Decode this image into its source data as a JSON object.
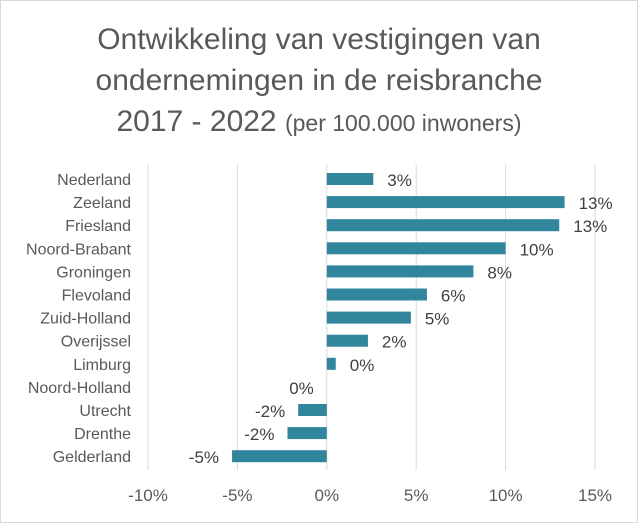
{
  "chart_data": {
    "type": "bar",
    "orientation": "horizontal",
    "title_line1": "Ontwikkeling van vestigingen van",
    "title_line2": "ondernemingen in de reisbranche",
    "title_line3_main": "2017 - 2022",
    "title_line3_sub": "(per 100.000 inwoners)",
    "categories": [
      "Nederland",
      "Zeeland",
      "Friesland",
      "Noord-Brabant",
      "Groningen",
      "Flevoland",
      "Zuid-Holland",
      "Overijssel",
      "Limburg",
      "Noord-Holland",
      "Utrecht",
      "Drenthe",
      "Gelderland"
    ],
    "values": [
      2.6,
      13.3,
      13.0,
      10.0,
      8.2,
      5.6,
      4.7,
      2.3,
      0.5,
      0.0,
      -1.6,
      -2.2,
      -5.3
    ],
    "data_labels": [
      "3%",
      "13%",
      "13%",
      "10%",
      "8%",
      "6%",
      "5%",
      "2%",
      "0%",
      "0%",
      "-2%",
      "-2%",
      "-5%"
    ],
    "xlim": [
      -10,
      15
    ],
    "xticks": [
      -10,
      -5,
      0,
      5,
      10,
      15
    ],
    "xtick_labels": [
      "-10%",
      "-5%",
      "0%",
      "5%",
      "10%",
      "15%"
    ],
    "xlabel": "",
    "ylabel": "",
    "grid": true,
    "legend": "none",
    "bar_color": "#31859c",
    "grid_color": "#d9d9d9",
    "text_color": "#595959"
  }
}
